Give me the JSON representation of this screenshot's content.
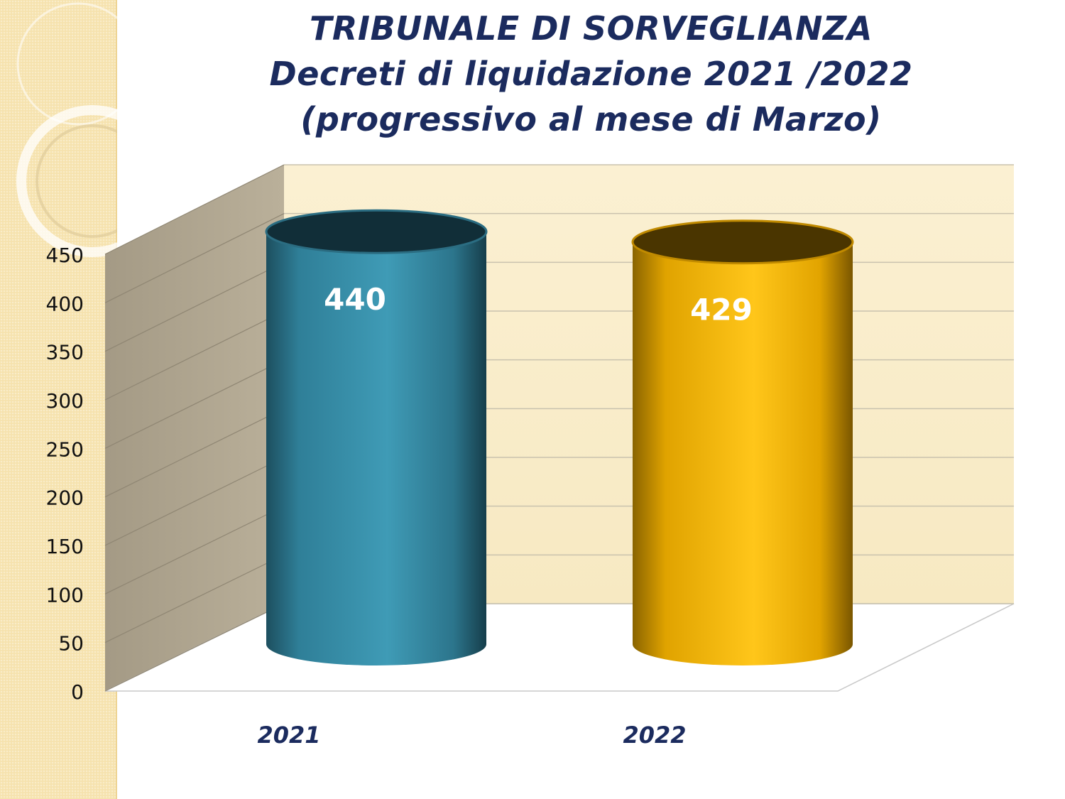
{
  "title": "TRIBUNALE DI SORVEGLIANZA",
  "subtitle_lines": [
    "Decreti di liquidazione 2021 /2022",
    "(progressivo al mese di Marzo)"
  ],
  "colors": {
    "series_2021": "#3a8ea8",
    "series_2022": "#f5b400",
    "title": "#1b2b5e",
    "wall": "#f8ebc8",
    "side_wall": "#aaa08c",
    "category_label": "#1b2b5e"
  },
  "chart_data": {
    "type": "bar",
    "categories": [
      "2021",
      "2022"
    ],
    "values": [
      440,
      429
    ],
    "data_labels": [
      "440",
      "429"
    ],
    "ylim": [
      0,
      450
    ],
    "yticks": [
      "0",
      "50",
      "100",
      "150",
      "200",
      "250",
      "300",
      "350",
      "400",
      "450"
    ],
    "grid": true,
    "legend": "none",
    "style": "3d-cylinder"
  }
}
